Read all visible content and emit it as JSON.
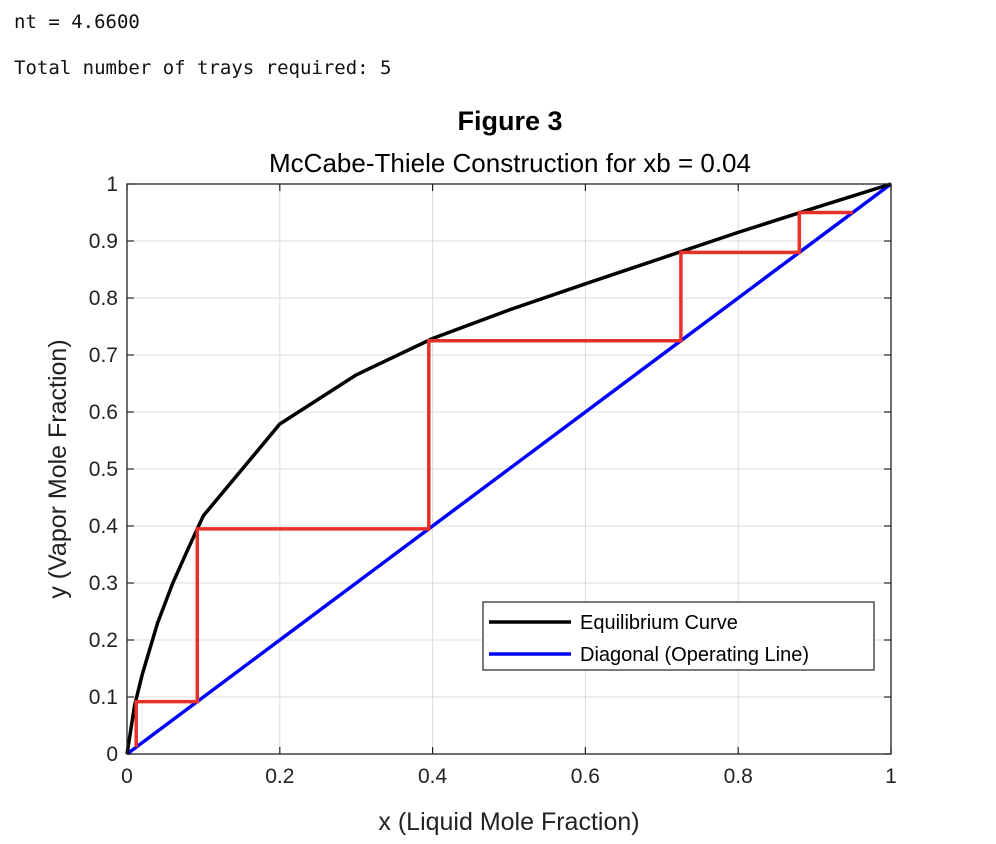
{
  "console": {
    "line1": "nt = 4.6600",
    "line2": "Total number of trays required: 5"
  },
  "chart_data": {
    "type": "line",
    "figure_label": "Figure 3",
    "title": "McCabe-Thiele Construction for xb = 0.04",
    "xlabel": "x (Liquid Mole Fraction)",
    "ylabel": "y (Vapor Mole Fraction)",
    "xlim": [
      0,
      1
    ],
    "ylim": [
      0,
      1
    ],
    "grid": true,
    "legend_position": "lower-right",
    "x_ticks": [
      0,
      0.2,
      0.4,
      0.6,
      0.8,
      1
    ],
    "x_tick_labels": [
      "0",
      "0.2",
      "0.4",
      "0.6",
      "0.8",
      "1"
    ],
    "y_ticks": [
      0,
      0.1,
      0.2,
      0.3,
      0.4,
      0.5,
      0.6,
      0.7,
      0.8,
      0.9,
      1
    ],
    "y_tick_labels": [
      "0",
      "0.1",
      "0.2",
      "0.3",
      "0.4",
      "0.5",
      "0.6",
      "0.7",
      "0.8",
      "0.9",
      "1"
    ],
    "series": [
      {
        "name": "Equilibrium Curve",
        "color": "#000000",
        "legend": true,
        "x": [
          0,
          0.01,
          0.02,
          0.04,
          0.06,
          0.08,
          0.1,
          0.2,
          0.3,
          0.4,
          0.5,
          0.6,
          0.7,
          0.8,
          0.9,
          1.0
        ],
        "y": [
          0,
          0.085,
          0.14,
          0.23,
          0.3,
          0.36,
          0.418,
          0.579,
          0.665,
          0.729,
          0.779,
          0.825,
          0.87,
          0.915,
          0.958,
          1.0
        ]
      },
      {
        "name": "Diagonal (Operating Line)",
        "color": "#0000ff",
        "legend": true,
        "x": [
          0,
          1
        ],
        "y": [
          0,
          1
        ]
      },
      {
        "color": "#e8302a",
        "legend": false,
        "x": [
          0.95,
          0.88,
          0.88,
          0.725,
          0.725,
          0.395,
          0.395,
          0.092,
          0.092,
          0.012,
          0.012
        ],
        "y": [
          0.95,
          0.95,
          0.88,
          0.88,
          0.725,
          0.725,
          0.395,
          0.395,
          0.092,
          0.092,
          0.012
        ]
      }
    ]
  }
}
